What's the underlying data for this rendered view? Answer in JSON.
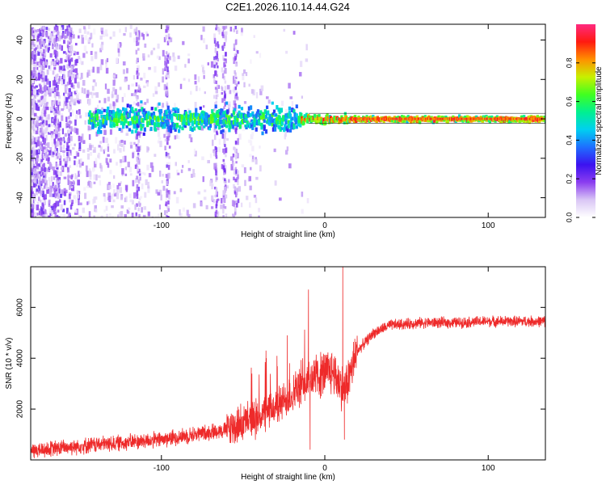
{
  "figure": {
    "title": "C2E1.2026.110.14.44.G24"
  },
  "chart_data": [
    {
      "type": "heatmap",
      "title": "C2E1.2026.110.14.44.G24",
      "xlabel": "Height of straight line (km)",
      "ylabel": "Frequency (Hz)",
      "xlim": [
        -180,
        135
      ],
      "ylim": [
        -50,
        48
      ],
      "x_ticks": [
        -100,
        0,
        100
      ],
      "y_ticks": [
        -40,
        -20,
        0,
        20,
        40
      ],
      "colorbar": {
        "label": "Normalized spectral amplitude",
        "range": [
          0,
          1
        ],
        "ticks": [
          0.0,
          0.2,
          0.4,
          0.6,
          0.8
        ],
        "tick_labels": [
          "0.0",
          "0.2",
          "0.4",
          "0.6",
          "0.8"
        ],
        "colors": [
          "#ffffff",
          "#d9c6f5",
          "#8b3df0",
          "#3b12f0",
          "#1e6fff",
          "#00d0f0",
          "#00f090",
          "#40ff20",
          "#c8f000",
          "#ff9000",
          "#ff1a10",
          "#ff2a80"
        ]
      },
      "signal_track": {
        "x_start": -145,
        "x_end": 135,
        "center_freq": 0,
        "noisy_until": -15,
        "stable_from": 15,
        "peak_amplitude": 0.95
      }
    },
    {
      "type": "line",
      "xlabel": "Height of straight line (km)",
      "ylabel": "SNR (10 * v/v)",
      "xlim": [
        -180,
        135
      ],
      "ylim": [
        0,
        7600
      ],
      "x_ticks": [
        -100,
        0,
        100
      ],
      "y_ticks": [
        2000,
        4000,
        6000
      ],
      "color": "#ee2a2a",
      "series": {
        "name": "SNR",
        "x_start": -180,
        "x_end": 135,
        "trend_x": [
          -180,
          -150,
          -100,
          -60,
          -40,
          -25,
          -12,
          -5,
          5,
          12,
          20,
          30,
          40,
          60,
          80,
          100,
          135
        ],
        "trend_y": [
          350,
          550,
          800,
          1200,
          1700,
          2300,
          3000,
          3300,
          3500,
          2700,
          4300,
          5000,
          5300,
          5400,
          5400,
          5450,
          5450
        ],
        "spikes": [
          {
            "x": -36,
            "y": 4300
          },
          {
            "x": -23,
            "y": 4900
          },
          {
            "x": -10,
            "y": 6700
          },
          {
            "x": 11,
            "y": 7600
          },
          {
            "x": 12,
            "y": 800
          },
          {
            "x": -9,
            "y": 400
          }
        ]
      }
    }
  ]
}
